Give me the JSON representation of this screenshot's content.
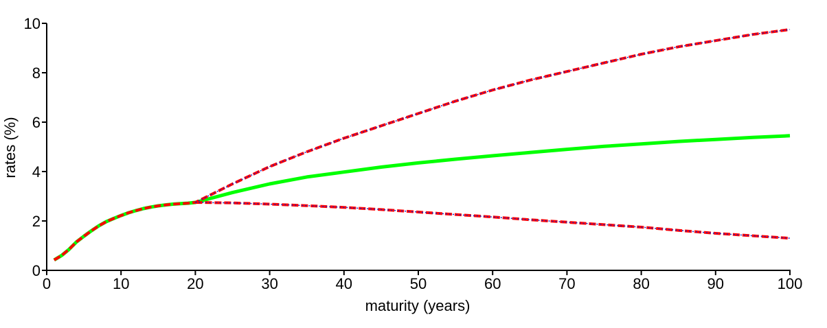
{
  "chart_data": {
    "type": "line",
    "title": "",
    "xlabel": "maturity (years)",
    "ylabel": "rates (%)",
    "xlim": [
      0,
      100
    ],
    "ylim": [
      0,
      10
    ],
    "xticks": [
      0,
      10,
      20,
      30,
      40,
      50,
      60,
      70,
      80,
      90,
      100
    ],
    "yticks": [
      0,
      2,
      4,
      6,
      8,
      10
    ],
    "xtick_labels": [
      "0",
      "10",
      "20",
      "30",
      "40",
      "50",
      "60",
      "70",
      "80",
      "90",
      "100"
    ],
    "ytick_labels": [
      "0",
      "2",
      "4",
      "6",
      "8",
      "10"
    ],
    "grid": false,
    "legend": "none",
    "series": [
      {
        "color": "#00ff00",
        "style": "solid",
        "x": [
          1,
          2,
          3,
          4,
          5,
          6,
          7,
          8,
          9,
          10,
          11,
          12,
          13,
          14,
          15,
          16,
          17,
          18,
          19,
          20,
          25,
          30,
          35,
          40,
          45,
          50,
          55,
          60,
          65,
          70,
          75,
          80,
          85,
          90,
          95,
          100
        ],
        "y": [
          0.42,
          0.6,
          0.85,
          1.15,
          1.38,
          1.6,
          1.8,
          1.97,
          2.1,
          2.22,
          2.33,
          2.42,
          2.5,
          2.56,
          2.61,
          2.65,
          2.68,
          2.7,
          2.72,
          2.75,
          3.15,
          3.5,
          3.78,
          3.98,
          4.18,
          4.35,
          4.5,
          4.64,
          4.77,
          4.9,
          5.02,
          5.12,
          5.22,
          5.3,
          5.38,
          5.45
        ]
      },
      {
        "color": "#ff0000",
        "style": "dashed",
        "x": [
          1,
          2,
          3,
          4,
          5,
          6,
          7,
          8,
          9,
          10,
          11,
          12,
          13,
          14,
          15,
          16,
          17,
          18,
          19,
          20,
          25,
          30,
          35,
          40,
          45,
          50,
          55,
          60,
          65,
          70,
          75,
          80,
          85,
          90,
          95,
          100
        ],
        "y": [
          0.42,
          0.6,
          0.85,
          1.15,
          1.38,
          1.6,
          1.8,
          1.97,
          2.1,
          2.22,
          2.33,
          2.42,
          2.5,
          2.56,
          2.61,
          2.65,
          2.68,
          2.7,
          2.72,
          2.75,
          3.5,
          4.2,
          4.8,
          5.35,
          5.85,
          6.35,
          6.85,
          7.3,
          7.7,
          8.05,
          8.4,
          8.75,
          9.05,
          9.3,
          9.55,
          9.75
        ]
      },
      {
        "color": "#ff0000",
        "style": "dashed",
        "x": [
          20,
          25,
          30,
          35,
          40,
          45,
          50,
          55,
          60,
          65,
          70,
          75,
          80,
          85,
          90,
          95,
          100
        ],
        "y": [
          2.75,
          2.73,
          2.68,
          2.62,
          2.55,
          2.46,
          2.36,
          2.26,
          2.16,
          2.05,
          1.95,
          1.85,
          1.75,
          1.62,
          1.5,
          1.4,
          1.3
        ]
      },
      {
        "color": "#2020c0",
        "style": "dotted",
        "x": [
          20,
          25,
          30,
          35,
          40,
          45,
          50,
          55,
          60,
          65,
          70,
          75,
          80,
          85,
          90,
          95,
          100
        ],
        "y": [
          2.75,
          3.5,
          4.2,
          4.8,
          5.35,
          5.85,
          6.35,
          6.85,
          7.3,
          7.7,
          8.05,
          8.4,
          8.75,
          9.05,
          9.3,
          9.55,
          9.75
        ]
      },
      {
        "color": "#2020c0",
        "style": "dotted",
        "x": [
          20,
          25,
          30,
          35,
          40,
          45,
          50,
          55,
          60,
          65,
          70,
          75,
          80,
          85,
          90,
          95,
          100
        ],
        "y": [
          2.75,
          2.73,
          2.68,
          2.62,
          2.55,
          2.46,
          2.36,
          2.26,
          2.16,
          2.05,
          1.95,
          1.85,
          1.75,
          1.62,
          1.5,
          1.4,
          1.3
        ]
      }
    ]
  }
}
